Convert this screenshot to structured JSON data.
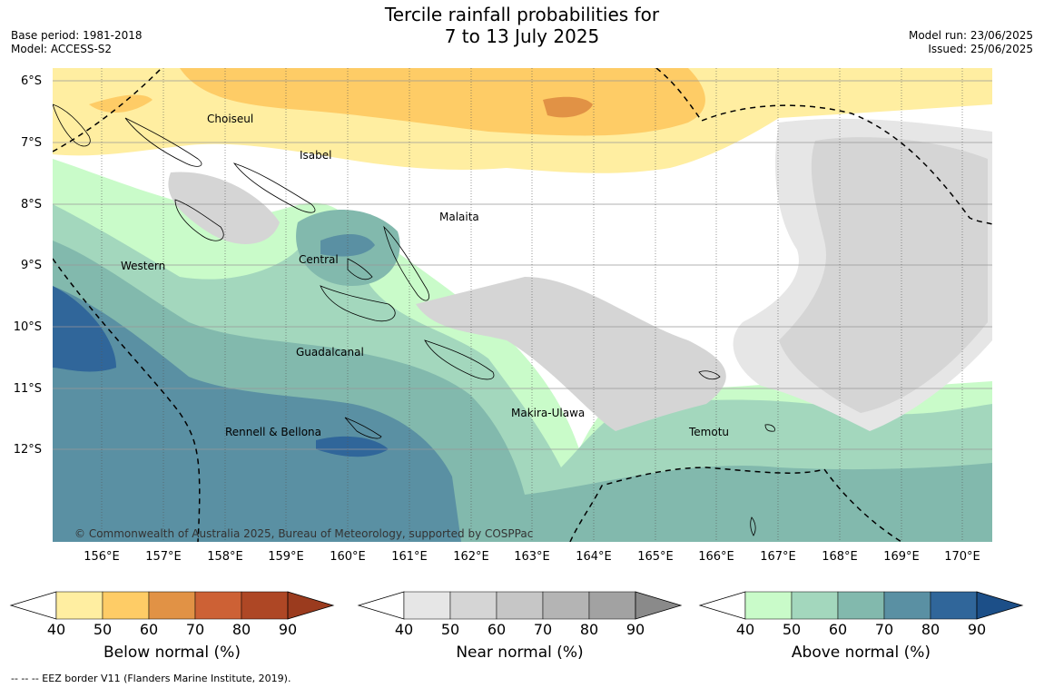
{
  "title_line1": "Tercile rainfall probabilities for",
  "title_line2": "7 to 13 July 2025",
  "base_period": "Base period: 1981-2018",
  "model": "Model: ACCESS-S2",
  "model_run": "Model run: 23/06/2025",
  "issued": "Issued: 25/06/2025",
  "lat_labels": [
    "6°S",
    "7°S",
    "8°S",
    "9°S",
    "10°S",
    "11°S",
    "12°S"
  ],
  "lon_labels": [
    "156°E",
    "157°E",
    "158°E",
    "159°E",
    "160°E",
    "161°E",
    "162°E",
    "163°E",
    "164°E",
    "165°E",
    "166°E",
    "167°E",
    "168°E",
    "169°E",
    "170°E"
  ],
  "regions": {
    "choiseul": "Choiseul",
    "isabel": "Isabel",
    "malaita": "Malaita",
    "western": "Western",
    "central": "Central",
    "guadalcanal": "Guadalcanal",
    "makira": "Makira-Ulawa",
    "rennell": "Rennell & Bellona",
    "temotu": "Temotu"
  },
  "copyright": "© Commonwealth of Australia 2025, Bureau of Meteorology, supported by COSPPac",
  "colorbars": [
    {
      "label": "Below normal (%)",
      "ticks": [
        "40",
        "50",
        "60",
        "70",
        "80",
        "90"
      ],
      "colors": [
        "#ffeea1",
        "#fecc66",
        "#e19245",
        "#cd6135",
        "#ae4725"
      ],
      "tail": "#9b3b1e"
    },
    {
      "label": "Near normal (%)",
      "ticks": [
        "40",
        "50",
        "60",
        "70",
        "80",
        "90"
      ],
      "colors": [
        "#e6e6e6",
        "#d5d5d5",
        "#c6c6c6",
        "#b4b4b4",
        "#a2a2a2"
      ],
      "tail": "#8a8a8a"
    },
    {
      "label": "Above normal (%)",
      "ticks": [
        "40",
        "50",
        "60",
        "70",
        "80",
        "90"
      ],
      "colors": [
        "#c9fbc9",
        "#a3d7bd",
        "#82b9ad",
        "#5a90a3",
        "#30669a"
      ],
      "tail": "#1c4f88"
    }
  ],
  "eez_note": "--  --  -- EEZ border V11 (Flanders Marine Institute, 2019)."
}
